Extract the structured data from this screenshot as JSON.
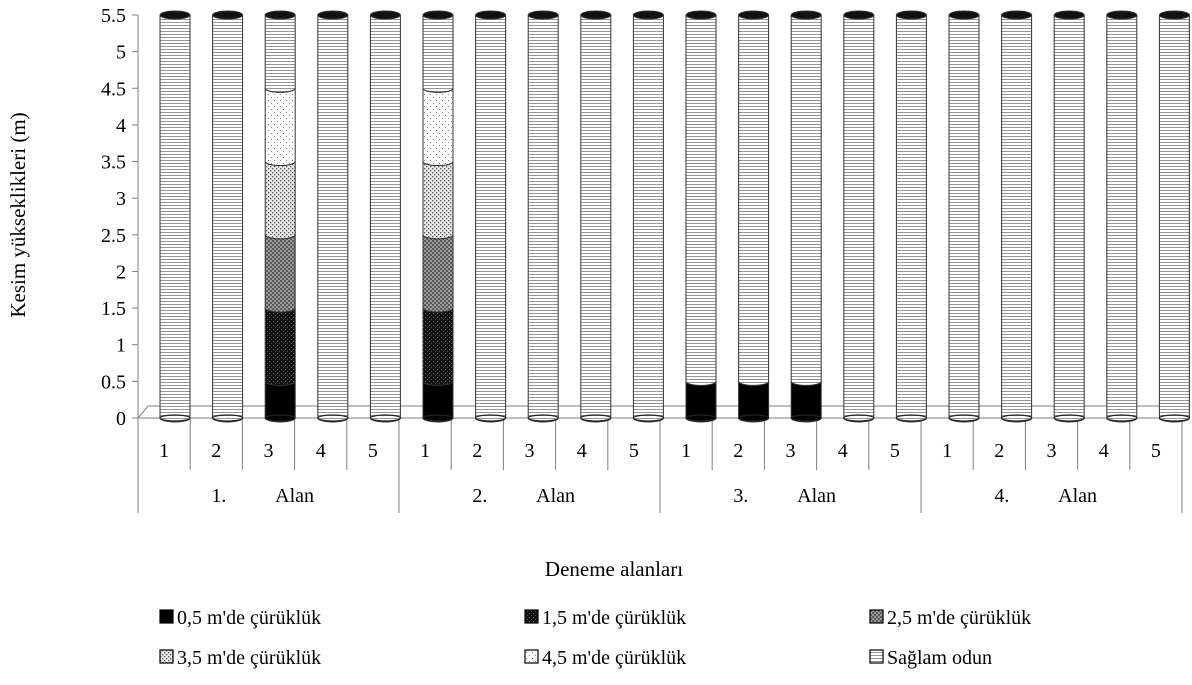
{
  "chart_data": {
    "type": "bar",
    "variant": "stacked-cylinder-3d",
    "title": "",
    "xlabel": "Deneme alanları",
    "ylabel": "Kesim yükseklikleri (m)",
    "ylim": [
      0,
      5.5
    ],
    "yticks": [
      "0",
      "0.5",
      "1",
      "1.5",
      "2",
      "2.5",
      "3",
      "3.5",
      "4",
      "4.5",
      "5",
      "5.5"
    ],
    "ytick_values": [
      0,
      0.5,
      1,
      1.5,
      2,
      2.5,
      3,
      3.5,
      4,
      4.5,
      5,
      5.5
    ],
    "grid": false,
    "legend_position": "bottom",
    "groups": [
      {
        "label_num": "1.",
        "label_name": "Alan"
      },
      {
        "label_num": "2.",
        "label_name": "Alan"
      },
      {
        "label_num": "3.",
        "label_name": "Alan"
      },
      {
        "label_num": "4.",
        "label_name": "Alan"
      }
    ],
    "categories": [
      "1",
      "2",
      "3",
      "4",
      "5",
      "1",
      "2",
      "3",
      "4",
      "5",
      "1",
      "2",
      "3",
      "4",
      "5",
      "1",
      "2",
      "3",
      "4",
      "5"
    ],
    "series": [
      {
        "name": "0,5 m'de çürüklük",
        "pattern": "solid",
        "values": [
          0,
          0,
          0.5,
          0,
          0,
          0.5,
          0,
          0,
          0,
          0,
          0.5,
          0.5,
          0.5,
          0,
          0,
          0,
          0,
          0,
          0,
          0
        ]
      },
      {
        "name": "1,5 m'de çürüklük",
        "pattern": "dark-dots",
        "values": [
          0,
          0,
          1,
          0,
          0,
          1,
          0,
          0,
          0,
          0,
          0,
          0,
          0,
          0,
          0,
          0,
          0,
          0,
          0,
          0
        ]
      },
      {
        "name": "2,5 m'de çürüklük",
        "pattern": "checker",
        "values": [
          0,
          0,
          1,
          0,
          0,
          1,
          0,
          0,
          0,
          0,
          0,
          0,
          0,
          0,
          0,
          0,
          0,
          0,
          0,
          0
        ]
      },
      {
        "name": "3,5 m'de çürüklük",
        "pattern": "medium-dots",
        "values": [
          0,
          0,
          1,
          0,
          0,
          1,
          0,
          0,
          0,
          0,
          0,
          0,
          0,
          0,
          0,
          0,
          0,
          0,
          0,
          0
        ]
      },
      {
        "name": "4,5 m'de çürüklük",
        "pattern": "sparse-dots",
        "values": [
          0,
          0,
          1,
          0,
          0,
          1,
          0,
          0,
          0,
          0,
          0,
          0,
          0,
          0,
          0,
          0,
          0,
          0,
          0,
          0
        ]
      },
      {
        "name": "Sağlam odun",
        "pattern": "horizontal-lines",
        "values": [
          5.5,
          5.5,
          1,
          5.5,
          5.5,
          1,
          5.5,
          5.5,
          5.5,
          5.5,
          5,
          5,
          5,
          5.5,
          5.5,
          5.5,
          5.5,
          5.5,
          5.5,
          5.5
        ]
      }
    ],
    "legend_markers": [
      "■",
      "■",
      "▩",
      "◘",
      "⊡",
      "□"
    ]
  }
}
